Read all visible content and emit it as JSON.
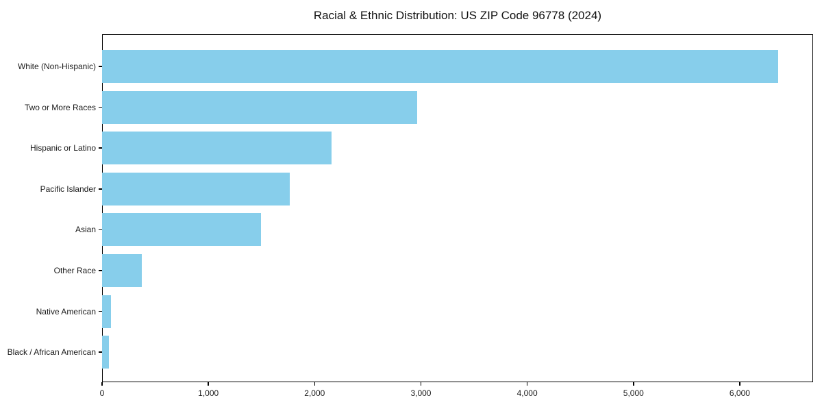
{
  "figure": {
    "title": "Racial & Ethnic Distribution: US ZIP Code 96778 (2024)"
  },
  "chart_data": {
    "type": "bar",
    "orientation": "horizontal",
    "title": "Racial & Ethnic Distribution: US ZIP Code 96778 (2024)",
    "categories": [
      "White (Non-Hispanic)",
      "Two or More Races",
      "Hispanic or Latino",
      "Pacific Islander",
      "Asian",
      "Other Race",
      "Native American",
      "Black / African American"
    ],
    "values": [
      6360,
      2965,
      2160,
      1765,
      1495,
      375,
      82,
      62
    ],
    "bar_color": "#87CEEB",
    "axis_color": "#000000",
    "text_color": "#1a1a1a",
    "xlabel": "",
    "ylabel": "",
    "xlim": [
      0,
      6690
    ],
    "x_ticks": [
      0,
      1000,
      2000,
      3000,
      4000,
      5000,
      6000
    ],
    "x_tick_labels": [
      "0",
      "1,000",
      "2,000",
      "3,000",
      "4,000",
      "5,000",
      "6,000"
    ],
    "grid": false,
    "legend": false
  }
}
